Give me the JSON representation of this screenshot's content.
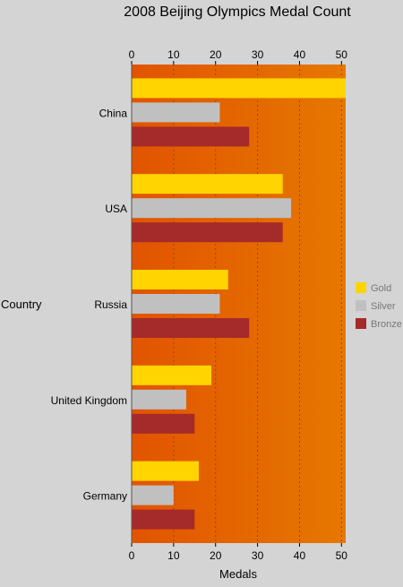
{
  "chart_data": {
    "type": "bar",
    "orientation": "horizontal",
    "title": "2008 Beijing Olympics Medal Count",
    "xlabel": "Medals",
    "ylabel": "Country",
    "xlim": [
      0,
      51
    ],
    "x_ticks": [
      0,
      10,
      20,
      30,
      40,
      50
    ],
    "grid": "vertical dashed",
    "axis_ticks_top_and_bottom": true,
    "legend_position": "right",
    "plot_background": [
      "#e25400",
      "#e67800"
    ],
    "categories": [
      "China",
      "USA",
      "Russia",
      "United Kingdom",
      "Germany"
    ],
    "series": [
      {
        "name": "Gold",
        "color": "#ffd400",
        "values": [
          51,
          36,
          23,
          19,
          16
        ]
      },
      {
        "name": "Silver",
        "color": "#c0c0c0",
        "values": [
          21,
          38,
          21,
          13,
          10
        ]
      },
      {
        "name": "Bronze",
        "color": "#a52a2a",
        "values": [
          28,
          36,
          28,
          15,
          15
        ]
      }
    ]
  }
}
